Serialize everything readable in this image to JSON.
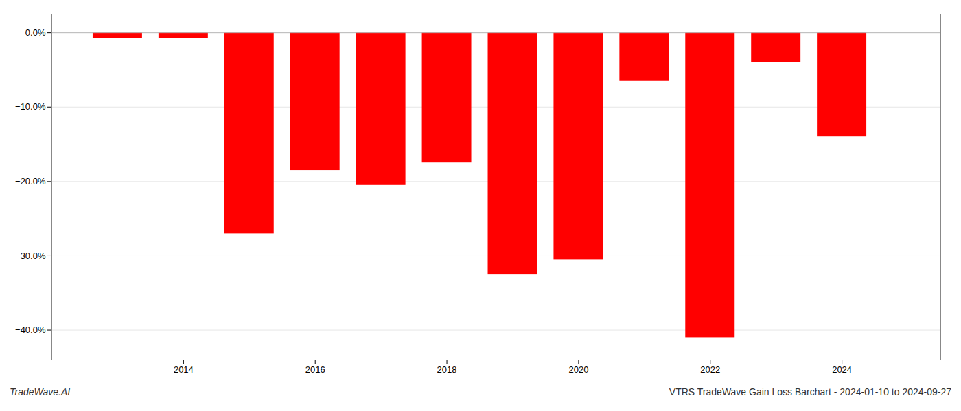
{
  "chart_data": {
    "type": "bar",
    "title": "VTRS TradeWave Gain Loss Barchart - 2024-01-10 to 2024-09-27",
    "annotations": [
      "TradeWave.AI"
    ],
    "x": [
      2013.0,
      2014.0,
      2015.0,
      2016.0,
      2017.0,
      2018.0,
      2019.0,
      2020.0,
      2021.0,
      2022.0,
      2023.0,
      2024.0
    ],
    "values": [
      -0.008,
      -0.008,
      -0.27,
      -0.185,
      -0.205,
      -0.175,
      -0.325,
      -0.305,
      -0.065,
      -0.41,
      -0.04,
      -0.14
    ],
    "color": "#ff0000",
    "xlim": [
      2012.0,
      2025.5
    ],
    "xticks": [
      2014,
      2016,
      2018,
      2020,
      2022,
      2024
    ],
    "ylim": [
      -0.44,
      0.025
    ],
    "yticks": [
      {
        "value": 0.0,
        "label": "0.0%"
      },
      {
        "value": -0.1,
        "label": "−10.0%"
      },
      {
        "value": -0.2,
        "label": "−20.0%"
      },
      {
        "value": -0.3,
        "label": "−30.0%"
      },
      {
        "value": -0.4,
        "label": "−40.0%"
      }
    ],
    "grid": true
  }
}
